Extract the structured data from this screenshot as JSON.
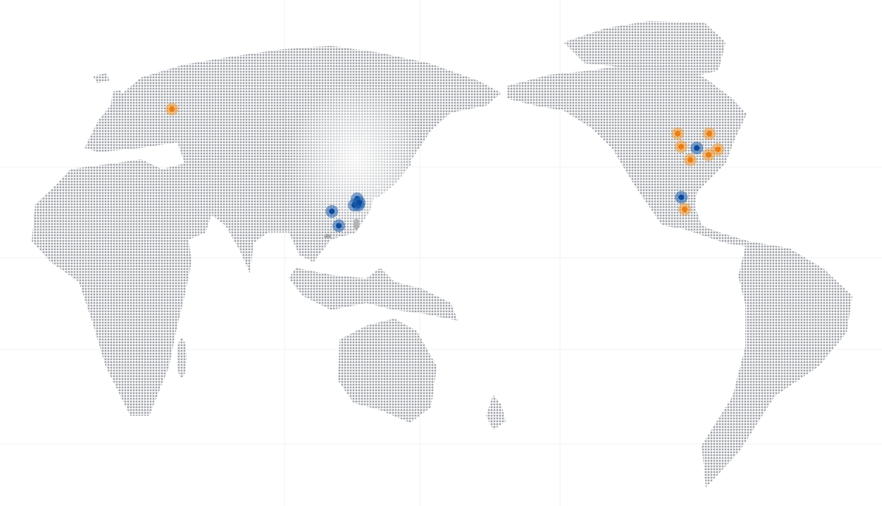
{
  "map": {
    "projection": "miller",
    "center_longitude": 150,
    "land_style": "dotted",
    "colors": {
      "land_dots": "#9ea2a8",
      "background": "#ffffff",
      "marker_blue": "#1f5fae",
      "marker_blue_core": "#0b4a9c",
      "marker_orange": "#f29a33",
      "marker_orange_core": "#ef7d10"
    },
    "markers": [
      {
        "category": "orange",
        "lat": 55.75,
        "lon": 37.6
      },
      {
        "category": "blue",
        "lat": 25.1,
        "lon": 109.0
      },
      {
        "category": "blue",
        "lat": 20.2,
        "lon": 112.1
      },
      {
        "category": "blue",
        "lat": 29.3,
        "lon": 120.3
      },
      {
        "category": "blue",
        "lat": 27.2,
        "lon": 120.9
      },
      {
        "category": "blue",
        "lat": 27.2,
        "lon": 119.0
      },
      {
        "category": "blue",
        "lat": 28.0,
        "lon": 121.2
      },
      {
        "category": "orange",
        "lat": 49.2,
        "lon": -96.6
      },
      {
        "category": "orange",
        "lat": 49.2,
        "lon": -82.5
      },
      {
        "category": "orange",
        "lat": 45.5,
        "lon": -95.1
      },
      {
        "category": "blue",
        "lat": 45.1,
        "lon": -88.1
      },
      {
        "category": "orange",
        "lat": 44.7,
        "lon": -78.7
      },
      {
        "category": "orange",
        "lat": 43.1,
        "lon": -82.8
      },
      {
        "category": "orange",
        "lat": 41.6,
        "lon": -91.0
      },
      {
        "category": "blue",
        "lat": 29.8,
        "lon": -95.0
      },
      {
        "category": "orange",
        "lat": 25.8,
        "lon": -93.5
      }
    ]
  }
}
